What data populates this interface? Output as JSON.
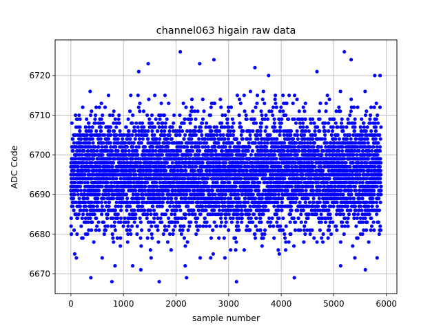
{
  "chart_data": {
    "type": "scatter",
    "title": "channel063 higain raw data",
    "xlabel": "sample number",
    "ylabel": "ADC Code",
    "xlim": [
      -300,
      6200
    ],
    "ylim": [
      6665,
      6729
    ],
    "xticks": [
      0,
      1000,
      2000,
      3000,
      4000,
      5000,
      6000
    ],
    "yticks": [
      6670,
      6680,
      6690,
      6700,
      6710,
      6720
    ],
    "xtick_labels": [
      "0",
      "1000",
      "2000",
      "3000",
      "4000",
      "5000",
      "6000"
    ],
    "ytick_labels": [
      "6670",
      "6680",
      "6690",
      "6700",
      "6710",
      "6720"
    ],
    "grid": true,
    "marker_color": "#0000ff",
    "n_samples": 5900,
    "x_start": 0,
    "y_mean": 6695.5,
    "y_std": 7,
    "y_min_observed": 6668,
    "y_max_observed": 6726,
    "notable_points": [
      {
        "x": 2080,
        "y": 6726
      },
      {
        "x": 5200,
        "y": 6726
      },
      {
        "x": 2720,
        "y": 6724
      },
      {
        "x": 5330,
        "y": 6724
      },
      {
        "x": 2450,
        "y": 6723
      },
      {
        "x": 1470,
        "y": 6723
      },
      {
        "x": 3500,
        "y": 6722
      },
      {
        "x": 1290,
        "y": 6721
      },
      {
        "x": 4680,
        "y": 6721
      },
      {
        "x": 3760,
        "y": 6720
      },
      {
        "x": 5780,
        "y": 6720
      },
      {
        "x": 5880,
        "y": 6720
      },
      {
        "x": 380,
        "y": 6669
      },
      {
        "x": 2200,
        "y": 6669
      },
      {
        "x": 4250,
        "y": 6669
      },
      {
        "x": 780,
        "y": 6668
      },
      {
        "x": 1680,
        "y": 6668
      },
      {
        "x": 3150,
        "y": 6668
      },
      {
        "x": 5130,
        "y": 6672
      },
      {
        "x": 5600,
        "y": 6671
      },
      {
        "x": 1330,
        "y": 6671
      }
    ]
  }
}
